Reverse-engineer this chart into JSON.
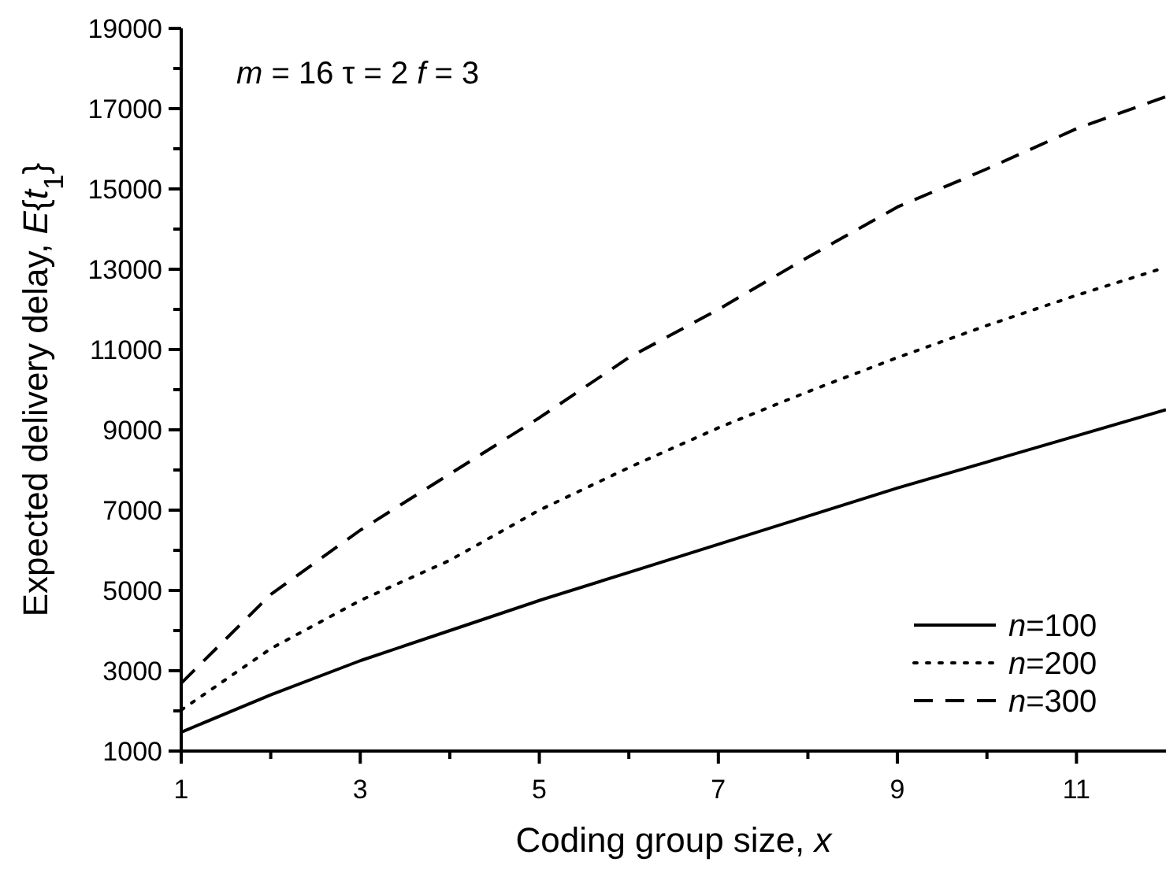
{
  "chart_data": {
    "type": "line",
    "xlabel": "Coding group size, x",
    "ylabel": "Expected delivery delay, E{t$_{1}$}",
    "annotations": [
      "m = 16  τ = 2  f = 3"
    ],
    "x": [
      1,
      2,
      3,
      4,
      5,
      6,
      7,
      8,
      9,
      10,
      11,
      12
    ],
    "series": [
      {
        "name": "n=100",
        "color": "#000000",
        "line_style": "solid",
        "values": [
          1470,
          2400,
          3250,
          4000,
          4750,
          5450,
          6150,
          6850,
          7550,
          8200,
          8850,
          9500
        ]
      },
      {
        "name": "n=200",
        "color": "#000000",
        "line_style": "dotted",
        "values": [
          2020,
          3550,
          4750,
          5750,
          7000,
          8060,
          9050,
          9950,
          10800,
          11600,
          12350,
          13050
        ]
      },
      {
        "name": "n=300",
        "color": "#000000",
        "line_style": "dashed",
        "values": [
          2690,
          4900,
          6500,
          7900,
          9300,
          10800,
          12000,
          13300,
          14550,
          15500,
          16500,
          17300
        ]
      }
    ],
    "xlim": [
      1,
      12
    ],
    "xticks": [
      1,
      {
        "value": 2,
        "label": null
      },
      3,
      {
        "value": 4,
        "label": null
      },
      5,
      {
        "value": 6,
        "label": null
      },
      7,
      {
        "value": 8,
        "label": null
      },
      9,
      {
        "value": 10,
        "label": null
      },
      11
    ],
    "ylim": [
      1000,
      19000
    ],
    "yticks": [
      1000,
      {
        "value": 2000,
        "label": null
      },
      3000,
      {
        "value": 4000,
        "label": null
      },
      5000,
      {
        "value": 6000,
        "label": null
      },
      7000,
      {
        "value": 8000,
        "label": null
      },
      9000,
      {
        "value": 10000,
        "label": null
      },
      11000,
      {
        "value": 12000,
        "label": null
      },
      13000,
      {
        "value": 14000,
        "label": null
      },
      15000,
      {
        "value": 16000,
        "label": null
      },
      17000,
      {
        "value": 18000,
        "label": null
      },
      19000
    ],
    "grid": false,
    "legend": "bottom right"
  }
}
